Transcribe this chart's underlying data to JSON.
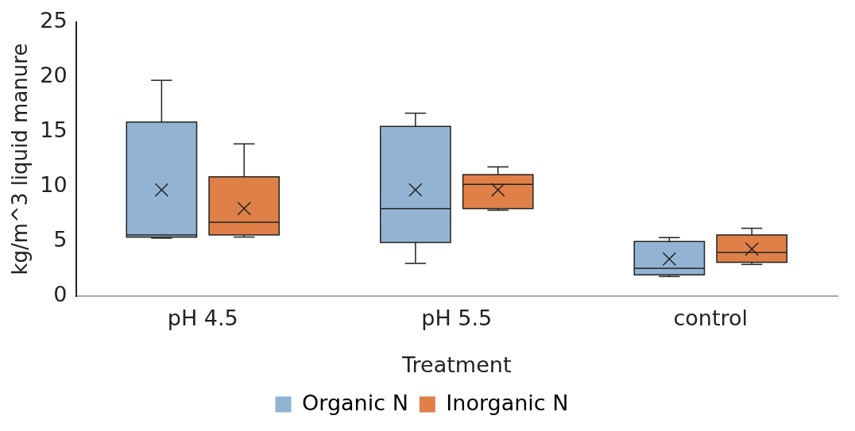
{
  "chart_data": {
    "type": "box",
    "xlabel": "Treatment",
    "ylabel": "kg/m^3 liquid manure",
    "categories": [
      "pH 4.5",
      "pH 5.5",
      "control"
    ],
    "ylim": [
      0,
      25
    ],
    "yticks": [
      0,
      5,
      10,
      15,
      20,
      25
    ],
    "grid": false,
    "legend": "bottom",
    "series": [
      {
        "name": "Organic N",
        "color": "#92b4d2",
        "boxes": [
          {
            "low": 5.3,
            "q1": 5.4,
            "median": 5.6,
            "q3": 15.9,
            "high": 19.7,
            "mean": 9.7
          },
          {
            "low": 3.0,
            "q1": 4.9,
            "median": 8.0,
            "q3": 15.5,
            "high": 16.7,
            "mean": 9.7
          },
          {
            "low": 1.8,
            "q1": 1.95,
            "median": 2.55,
            "q3": 5.0,
            "high": 5.35,
            "mean": 3.4
          }
        ]
      },
      {
        "name": "Inorganic N",
        "color": "#de8047",
        "boxes": [
          {
            "low": 5.4,
            "q1": 5.6,
            "median": 6.75,
            "q3": 10.9,
            "high": 13.9,
            "mean": 8.0
          },
          {
            "low": 7.85,
            "q1": 8.0,
            "median": 10.2,
            "q3": 11.1,
            "high": 11.8,
            "mean": 9.7
          },
          {
            "low": 2.9,
            "q1": 3.1,
            "median": 4.0,
            "q3": 5.6,
            "high": 6.2,
            "mean": 4.3
          }
        ]
      }
    ]
  }
}
